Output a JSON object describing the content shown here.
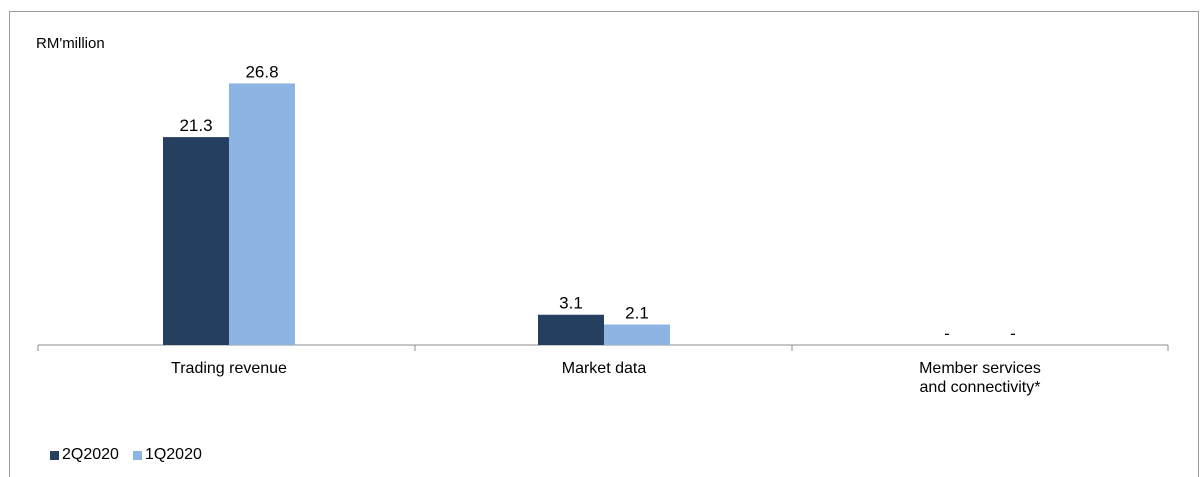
{
  "chart_data": {
    "type": "bar",
    "unit_label": "RM'million",
    "categories": [
      "Trading revenue",
      "Market data",
      "Member services and connectivity*"
    ],
    "category_lines": [
      [
        "Trading revenue"
      ],
      [
        "Market data"
      ],
      [
        "Member services",
        "and connectivity*"
      ]
    ],
    "series": [
      {
        "name": "2Q2020",
        "values": [
          21.3,
          3.1,
          0
        ],
        "labels": [
          "21.3",
          "3.1",
          "-"
        ],
        "color": "#253f5e"
      },
      {
        "name": "1Q2020",
        "values": [
          26.8,
          2.1,
          0
        ],
        "labels": [
          "26.8",
          "2.1",
          "-"
        ],
        "color": "#8eb4e3"
      }
    ],
    "ylim": [
      0,
      28
    ],
    "grid": false,
    "legend_position": "bottom-left"
  }
}
